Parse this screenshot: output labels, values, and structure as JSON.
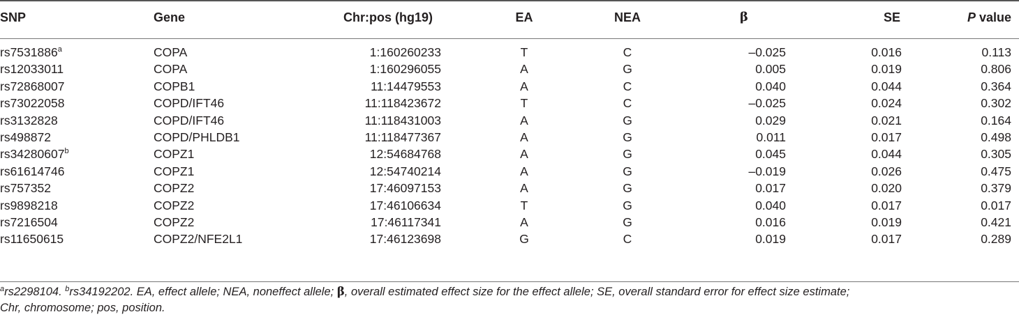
{
  "table": {
    "headers": {
      "snp": "SNP",
      "gene": "Gene",
      "chr_pos": "Chr:pos (hg19)",
      "ea": "EA",
      "nea": "NEA",
      "beta": "β",
      "se": "SE",
      "p_italic": "P",
      "p_rest": " value"
    },
    "rows": [
      {
        "snp": "rs7531886",
        "sup": "a",
        "gene": "COPA",
        "chr_pos": "1:160260233",
        "ea": "T",
        "nea": "C",
        "beta": "–0.025",
        "se": "0.016",
        "p": "0.113"
      },
      {
        "snp": "rs12033011",
        "sup": "",
        "gene": "COPA",
        "chr_pos": "1:160296055",
        "ea": "A",
        "nea": "G",
        "beta": "0.005",
        "se": "0.019",
        "p": "0.806"
      },
      {
        "snp": "rs72868007",
        "sup": "",
        "gene": "COPB1",
        "chr_pos": "11:14479553",
        "ea": "A",
        "nea": "C",
        "beta": "0.040",
        "se": "0.044",
        "p": "0.364"
      },
      {
        "snp": "rs73022058",
        "sup": "",
        "gene": "COPD/IFT46",
        "chr_pos": "11:118423672",
        "ea": "T",
        "nea": "C",
        "beta": "–0.025",
        "se": "0.024",
        "p": "0.302"
      },
      {
        "snp": "rs3132828",
        "sup": "",
        "gene": "COPD/IFT46",
        "chr_pos": "11:118431003",
        "ea": "A",
        "nea": "G",
        "beta": "0.029",
        "se": "0.021",
        "p": "0.164"
      },
      {
        "snp": "rs498872",
        "sup": "",
        "gene": "COPD/PHLDB1",
        "chr_pos": "11:118477367",
        "ea": "A",
        "nea": "G",
        "beta": "0.011",
        "se": "0.017",
        "p": "0.498"
      },
      {
        "snp": "rs34280607",
        "sup": "b",
        "gene": "COPZ1",
        "chr_pos": "12:54684768",
        "ea": "A",
        "nea": "G",
        "beta": "0.045",
        "se": "0.044",
        "p": "0.305"
      },
      {
        "snp": "rs61614746",
        "sup": "",
        "gene": "COPZ1",
        "chr_pos": "12:54740214",
        "ea": "A",
        "nea": "G",
        "beta": "–0.019",
        "se": "0.026",
        "p": "0.475"
      },
      {
        "snp": "rs757352",
        "sup": "",
        "gene": "COPZ2",
        "chr_pos": "17:46097153",
        "ea": "A",
        "nea": "G",
        "beta": "0.017",
        "se": "0.020",
        "p": "0.379"
      },
      {
        "snp": "rs9898218",
        "sup": "",
        "gene": "COPZ2",
        "chr_pos": "17:46106634",
        "ea": "T",
        "nea": "G",
        "beta": "0.040",
        "se": "0.017",
        "p": "0.017"
      },
      {
        "snp": "rs7216504",
        "sup": "",
        "gene": "COPZ2",
        "chr_pos": "17:46117341",
        "ea": "A",
        "nea": "G",
        "beta": "0.016",
        "se": "0.019",
        "p": "0.421"
      },
      {
        "snp": "rs11650615",
        "sup": "",
        "gene": "COPZ2/NFE2L1",
        "chr_pos": "17:46123698",
        "ea": "G",
        "nea": "C",
        "beta": "0.019",
        "se": "0.017",
        "p": "0.289"
      }
    ]
  },
  "footnote": {
    "sup_a": "a",
    "text_a": "rs2298104. ",
    "sup_b": "b",
    "text_b": "rs34192202. EA, effect allele; NEA, noneffect allele; ",
    "beta_symbol": "β",
    "text_c": ", overall estimated effect size for the effect allele; SE, overall standard error for effect size estimate;",
    "text_d": "Chr, chromosome; pos, position."
  }
}
